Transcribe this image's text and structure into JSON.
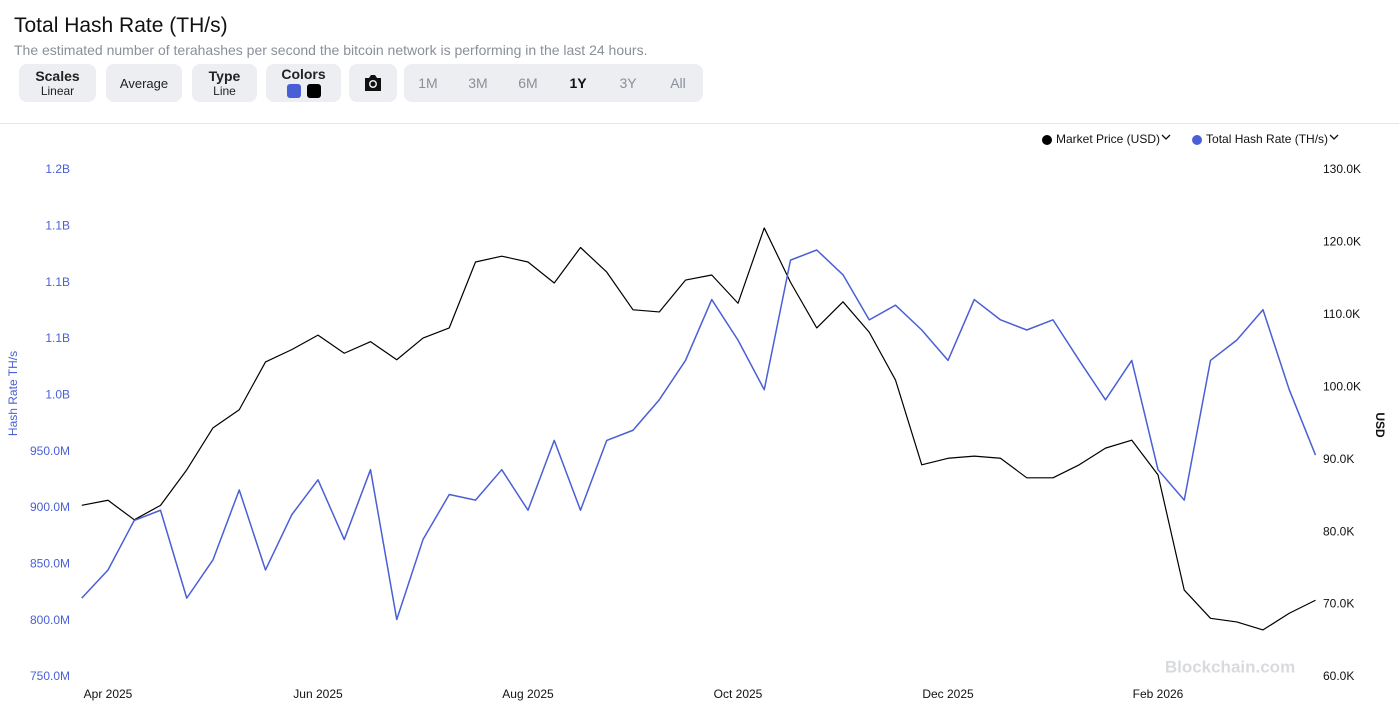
{
  "header": {
    "title": "Total Hash Rate (TH/s)",
    "subtitle": "The estimated number of terahashes per second the bitcoin network is performing in the last 24 hours."
  },
  "controls": {
    "scales": {
      "label": "Scales",
      "value": "Linear"
    },
    "average": "Average",
    "type": {
      "label": "Type",
      "value": "Line"
    },
    "colors": "Colors",
    "ranges": [
      "1M",
      "3M",
      "6M",
      "1Y",
      "3Y",
      "All"
    ],
    "active_range": 3
  },
  "chart_data": {
    "type": "line",
    "y_label": "Hash Rate TH/s",
    "y2_label": "USD",
    "watermark": "Blockchain.com",
    "legend": "top-right",
    "grid": false,
    "categories": [
      null,
      "Apr 2025",
      null,
      null,
      null,
      null,
      null,
      null,
      null,
      "Jun 2025",
      null,
      null,
      null,
      null,
      null,
      null,
      null,
      "Aug 2025",
      null,
      null,
      null,
      null,
      null,
      null,
      null,
      "Oct 2025",
      null,
      null,
      null,
      null,
      null,
      null,
      null,
      "Dec 2025",
      null,
      null,
      null,
      null,
      null,
      null,
      null,
      "Feb 2026",
      null,
      null,
      null,
      null,
      null,
      null
    ],
    "series": [
      {
        "name": "Market Price (USD)",
        "color": "#000000",
        "axis": "y2",
        "values": [
          83700,
          84400,
          81700,
          83700,
          88600,
          94400,
          96900,
          103500,
          105200,
          107200,
          104700,
          106300,
          103800,
          106800,
          108200,
          117300,
          118100,
          117300,
          114400,
          119300,
          115900,
          110700,
          110400,
          114800,
          115500,
          111600,
          122000,
          114500,
          108200,
          111800,
          107600,
          101000,
          89300,
          90200,
          90500,
          90200,
          87500,
          87500,
          89300,
          91600,
          92700,
          87900,
          72000,
          68100,
          67600,
          66500,
          68800,
          70600
        ]
      },
      {
        "name": "Total Hash Rate (TH/s)",
        "color": "#4a5fd6",
        "values": [
          820000000,
          845000000,
          889000000,
          898000000,
          820000000,
          854000000,
          916000000,
          845000000,
          894000000,
          925000000,
          872000000,
          934000000,
          801000000,
          872000000,
          912000000,
          907000000,
          934000000,
          898000000,
          960000000,
          898000000,
          960000000,
          969000000,
          996000000,
          1031000000,
          1085000000,
          1049000000,
          1005000000,
          1120000000,
          1129000000,
          1107000000,
          1067000000,
          1080000000,
          1058000000,
          1031000000,
          1085000000,
          1067000000,
          1058000000,
          1067000000,
          1031000000,
          996000000,
          1031000000,
          934000000,
          907000000,
          1031000000,
          1049000000,
          1076000000,
          1005000000,
          947000000
        ]
      }
    ],
    "ylim": [
      750000000,
      1200000000
    ],
    "yticks": [
      {
        "value": 750000000,
        "label": "750.0M"
      },
      {
        "value": 800000000,
        "label": "800.0M"
      },
      {
        "value": 850000000,
        "label": "850.0M"
      },
      {
        "value": 900000000,
        "label": "900.0M"
      },
      {
        "value": 950000000,
        "label": "950.0M"
      },
      {
        "value": 1000000000,
        "label": "1.0B"
      },
      {
        "value": 1050000000,
        "label": "1.1B"
      },
      {
        "value": 1100000000,
        "label": "1.1B"
      },
      {
        "value": 1150000000,
        "label": "1.1B"
      },
      {
        "value": 1200000000,
        "label": "1.2B"
      }
    ],
    "y2lim": [
      60000,
      130000
    ],
    "y2ticks": [
      {
        "value": 60000,
        "label": "60.0K"
      },
      {
        "value": 70000,
        "label": "70.0K"
      },
      {
        "value": 80000,
        "label": "80.0K"
      },
      {
        "value": 90000,
        "label": "90.0K"
      },
      {
        "value": 100000,
        "label": "100.0K"
      },
      {
        "value": 110000,
        "label": "110.0K"
      },
      {
        "value": 120000,
        "label": "120.0K"
      },
      {
        "value": 130000,
        "label": "130.0K"
      }
    ]
  }
}
